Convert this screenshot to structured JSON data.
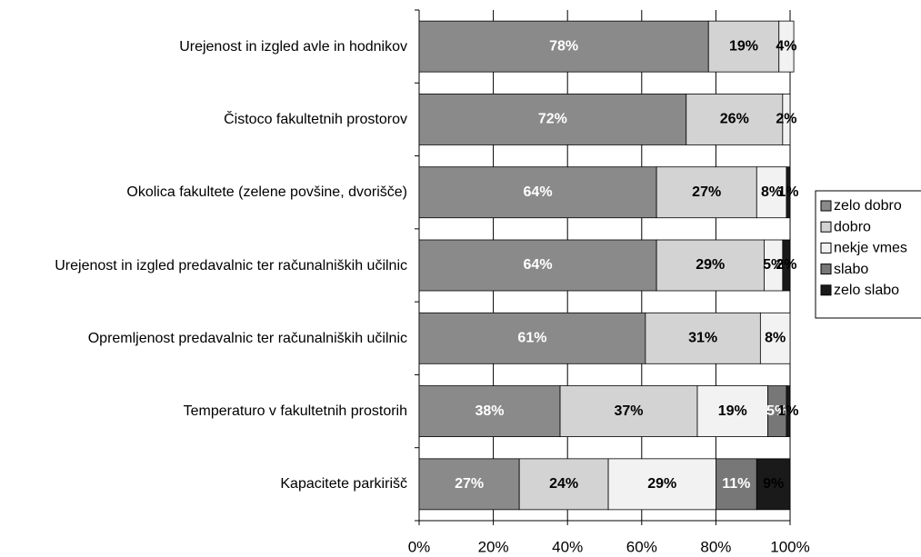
{
  "chart_data": {
    "type": "stacked_barh",
    "categories": [
      "Urejenost in izgled avle in hodnikov",
      "Čistoco fakultetnih prostorov",
      "Okolica fakultete (zelene povšine, dvorišče)",
      "Urejenost in izgled predavalnic ter računalniških učilnic",
      "Opremljenost predavalnic ter računalniških učilnic",
      "Temperaturo v fakultetnih prostorih",
      "Kapacitete parkirišč"
    ],
    "series": [
      {
        "name": "zelo dobro",
        "color": "#8a8a8a",
        "label_color": "#ffffff",
        "values": [
          78,
          72,
          64,
          64,
          61,
          38,
          27
        ],
        "value_labels": [
          "78%",
          "72%",
          "64%",
          "64%",
          "61%",
          "38%",
          "27%"
        ]
      },
      {
        "name": "dobro",
        "color": "#d3d3d3",
        "label_color": "#000000",
        "values": [
          19,
          26,
          27,
          29,
          31,
          37,
          24
        ],
        "value_labels": [
          "19%",
          "26%",
          "27%",
          "29%",
          "31%",
          "37%",
          "24%"
        ]
      },
      {
        "name": "nekje vmes",
        "color": "#f2f2f2",
        "label_color": "#000000",
        "values": [
          4,
          2,
          8,
          5,
          8,
          19,
          29
        ],
        "value_labels": [
          "4%",
          "2%",
          "8%",
          "5%",
          "8%",
          "19%",
          "29%"
        ]
      },
      {
        "name": "slabo",
        "color": "#777777",
        "label_color": "#ffffff",
        "values": [
          null,
          null,
          null,
          null,
          null,
          5,
          11
        ],
        "value_labels": [
          null,
          null,
          null,
          null,
          null,
          "5%",
          "11%"
        ]
      },
      {
        "name": "zelo slabo",
        "color": "#1a1a1a",
        "label_color": "#000000",
        "values": [
          null,
          null,
          1,
          2,
          null,
          1,
          9
        ],
        "value_labels": [
          null,
          null,
          "1%",
          "2%",
          null,
          "1%",
          "9%"
        ]
      }
    ],
    "xlim": [
      0,
      100
    ],
    "xticks": [
      {
        "value": 0,
        "label": "0%"
      },
      {
        "value": 20,
        "label": "20%"
      },
      {
        "value": 40,
        "label": "40%"
      },
      {
        "value": 60,
        "label": "60%"
      },
      {
        "value": 80,
        "label": "80%"
      },
      {
        "value": 100,
        "label": "100%"
      }
    ],
    "grid": true,
    "legend": "right"
  }
}
